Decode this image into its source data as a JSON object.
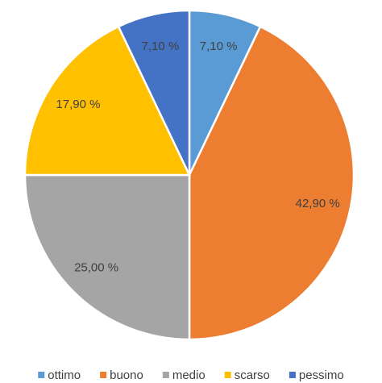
{
  "chart_data": {
    "type": "pie",
    "categories": [
      "ottimo",
      "buono",
      "medio",
      "scarso",
      "pessimo"
    ],
    "values": [
      7.1,
      42.9,
      25.0,
      17.9,
      7.1
    ],
    "value_labels": [
      "7,10 %",
      "42,90 %",
      "25,00 %",
      "17,90 %",
      "7,10 %"
    ],
    "colors": [
      "#5b9bd5",
      "#ed7d31",
      "#a5a5a5",
      "#ffc000",
      "#4472c4"
    ],
    "legend": "bottom"
  }
}
